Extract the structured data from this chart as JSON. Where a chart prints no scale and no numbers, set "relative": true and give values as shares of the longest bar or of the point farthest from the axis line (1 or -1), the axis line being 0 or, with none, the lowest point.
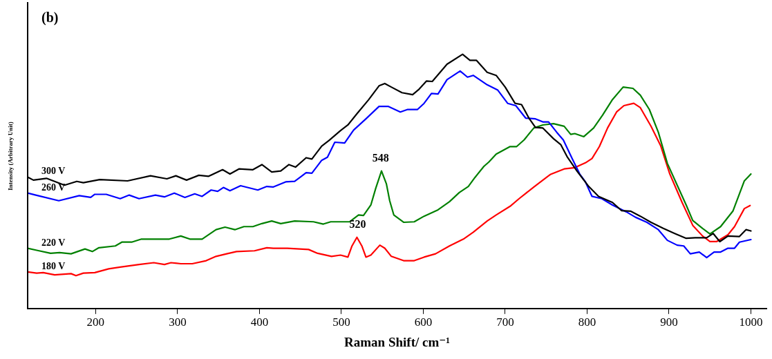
{
  "chart_data": {
    "type": "line",
    "relative": true,
    "xlabel": "Raman Shift/ cm⁻¹",
    "ylabel": "Intensity (Arbitrary Unit)",
    "xlim": [
      117,
      1019
    ],
    "xticks": [
      200,
      300,
      400,
      500,
      600,
      700,
      800,
      900,
      1000
    ],
    "grid": false,
    "legend": false,
    "marker": "none",
    "line_style": "solid",
    "annotations": [
      "(b)",
      {
        "text": "548",
        "x": 548,
        "y": 0.541
      },
      {
        "text": "520",
        "x": 520,
        "y": 0.28
      }
    ],
    "series": [
      {
        "name": "300 V",
        "color": "#000000",
        "x": [
          117,
          124,
          140,
          162,
          177,
          185,
          205,
          239,
          267,
          287,
          298,
          311,
          326,
          338,
          355,
          364,
          375,
          392,
          403,
          415,
          426,
          436,
          444,
          457,
          464,
          476,
          485,
          499,
          508,
          519,
          533,
          546,
          553,
          561,
          574,
          587,
          595,
          604,
          611,
          629,
          648,
          657,
          665,
          678,
          689,
          700,
          712,
          720,
          729,
          737,
          746,
          759,
          768,
          776,
          788,
          802,
          814,
          831,
          842,
          853,
          865,
          878,
          893,
          907,
          921,
          932,
          946,
          954,
          962,
          972,
          986,
          994,
          1000
        ],
        "values": [
          0.517,
          0.505,
          0.512,
          0.485,
          0.5,
          0.495,
          0.507,
          0.502,
          0.522,
          0.51,
          0.522,
          0.505,
          0.524,
          0.52,
          0.546,
          0.529,
          0.549,
          0.546,
          0.566,
          0.537,
          0.541,
          0.566,
          0.556,
          0.593,
          0.588,
          0.639,
          0.661,
          0.7,
          0.722,
          0.766,
          0.82,
          0.876,
          0.885,
          0.871,
          0.849,
          0.841,
          0.863,
          0.895,
          0.893,
          0.961,
          1,
          0.976,
          0.976,
          0.929,
          0.917,
          0.871,
          0.807,
          0.802,
          0.749,
          0.712,
          0.71,
          0.668,
          0.644,
          0.595,
          0.539,
          0.48,
          0.441,
          0.417,
          0.385,
          0.383,
          0.363,
          0.339,
          0.315,
          0.295,
          0.276,
          0.278,
          0.278,
          0.295,
          0.263,
          0.285,
          0.283,
          0.31,
          0.305
        ]
      },
      {
        "name": "260 V",
        "color": "#0000ff",
        "x": [
          117,
          127,
          155,
          180,
          194,
          199,
          213,
          230,
          241,
          253,
          273,
          284,
          296,
          309,
          321,
          330,
          341,
          349,
          356,
          364,
          377,
          398,
          409,
          417,
          432,
          443,
          457,
          464,
          476,
          483,
          492,
          504,
          515,
          530,
          546,
          557,
          572,
          581,
          593,
          601,
          610,
          618,
          629,
          645,
          654,
          661,
          678,
          691,
          703,
          713,
          725,
          737,
          746,
          753,
          763,
          771,
          782,
          791,
          798,
          806,
          818,
          831,
          848,
          859,
          873,
          887,
          898,
          910,
          918,
          926,
          937,
          946,
          955,
          963,
          972,
          980,
          986,
          1000
        ],
        "values": [
          0.454,
          0.446,
          0.424,
          0.444,
          0.437,
          0.449,
          0.449,
          0.432,
          0.446,
          0.432,
          0.446,
          0.439,
          0.454,
          0.437,
          0.451,
          0.441,
          0.466,
          0.461,
          0.476,
          0.463,
          0.483,
          0.466,
          0.48,
          0.478,
          0.498,
          0.5,
          0.534,
          0.532,
          0.583,
          0.595,
          0.654,
          0.651,
          0.702,
          0.746,
          0.795,
          0.795,
          0.773,
          0.783,
          0.783,
          0.807,
          0.846,
          0.844,
          0.9,
          0.934,
          0.91,
          0.917,
          0.88,
          0.859,
          0.807,
          0.798,
          0.749,
          0.746,
          0.734,
          0.734,
          0.693,
          0.663,
          0.588,
          0.529,
          0.498,
          0.441,
          0.432,
          0.407,
          0.38,
          0.359,
          0.339,
          0.31,
          0.268,
          0.249,
          0.246,
          0.215,
          0.222,
          0.2,
          0.222,
          0.222,
          0.237,
          0.237,
          0.261,
          0.271
        ]
      },
      {
        "name": "220 V",
        "color": "#008000",
        "x": [
          117,
          128,
          145,
          156,
          170,
          187,
          196,
          204,
          224,
          232,
          244,
          256,
          290,
          304,
          315,
          330,
          347,
          358,
          370,
          381,
          392,
          403,
          415,
          426,
          443,
          466,
          478,
          487,
          510,
          521,
          527,
          536,
          542,
          549,
          555,
          559,
          564,
          576,
          589,
          601,
          618,
          632,
          644,
          655,
          663,
          674,
          680,
          689,
          706,
          714,
          723,
          735,
          746,
          759,
          772,
          780,
          785,
          796,
          808,
          819,
          831,
          844,
          856,
          865,
          876,
          887,
          898,
          910,
          921,
          929,
          941,
          950,
          963,
          978,
          992,
          1000
        ],
        "values": [
          0.237,
          0.229,
          0.217,
          0.22,
          0.215,
          0.234,
          0.224,
          0.239,
          0.246,
          0.261,
          0.261,
          0.273,
          0.273,
          0.285,
          0.273,
          0.273,
          0.31,
          0.32,
          0.31,
          0.322,
          0.322,
          0.334,
          0.344,
          0.334,
          0.344,
          0.341,
          0.332,
          0.341,
          0.341,
          0.368,
          0.366,
          0.407,
          0.473,
          0.541,
          0.49,
          0.424,
          0.368,
          0.339,
          0.341,
          0.363,
          0.388,
          0.42,
          0.456,
          0.48,
          0.515,
          0.559,
          0.576,
          0.607,
          0.637,
          0.637,
          0.663,
          0.71,
          0.722,
          0.727,
          0.717,
          0.685,
          0.688,
          0.676,
          0.71,
          0.761,
          0.822,
          0.871,
          0.866,
          0.839,
          0.783,
          0.693,
          0.571,
          0.485,
          0.407,
          0.346,
          0.315,
          0.293,
          0.322,
          0.383,
          0.502,
          0.529
        ]
      },
      {
        "name": "180 V",
        "color": "#ff0000",
        "x": [
          117,
          128,
          136,
          150,
          170,
          176,
          185,
          199,
          216,
          230,
          253,
          271,
          284,
          292,
          304,
          318,
          335,
          347,
          360,
          372,
          394,
          409,
          417,
          434,
          460,
          471,
          488,
          499,
          508,
          513,
          519,
          525,
          530,
          536,
          547,
          553,
          561,
          576,
          589,
          601,
          615,
          632,
          649,
          661,
          678,
          689,
          706,
          717,
          735,
          755,
          772,
          785,
          798,
          806,
          815,
          825,
          836,
          845,
          857,
          865,
          878,
          890,
          901,
          916,
          929,
          941,
          950,
          958,
          972,
          980,
          992,
          999
        ],
        "values": [
          0.144,
          0.139,
          0.141,
          0.132,
          0.137,
          0.129,
          0.139,
          0.141,
          0.156,
          0.163,
          0.173,
          0.18,
          0.173,
          0.18,
          0.176,
          0.176,
          0.188,
          0.205,
          0.215,
          0.224,
          0.227,
          0.239,
          0.237,
          0.237,
          0.232,
          0.217,
          0.205,
          0.21,
          0.202,
          0.246,
          0.28,
          0.246,
          0.202,
          0.21,
          0.249,
          0.237,
          0.205,
          0.188,
          0.188,
          0.202,
          0.215,
          0.246,
          0.273,
          0.3,
          0.344,
          0.368,
          0.402,
          0.432,
          0.478,
          0.527,
          0.549,
          0.554,
          0.573,
          0.59,
          0.637,
          0.71,
          0.773,
          0.798,
          0.807,
          0.79,
          0.717,
          0.639,
          0.529,
          0.417,
          0.327,
          0.285,
          0.263,
          0.263,
          0.29,
          0.322,
          0.393,
          0.405
        ]
      }
    ]
  }
}
